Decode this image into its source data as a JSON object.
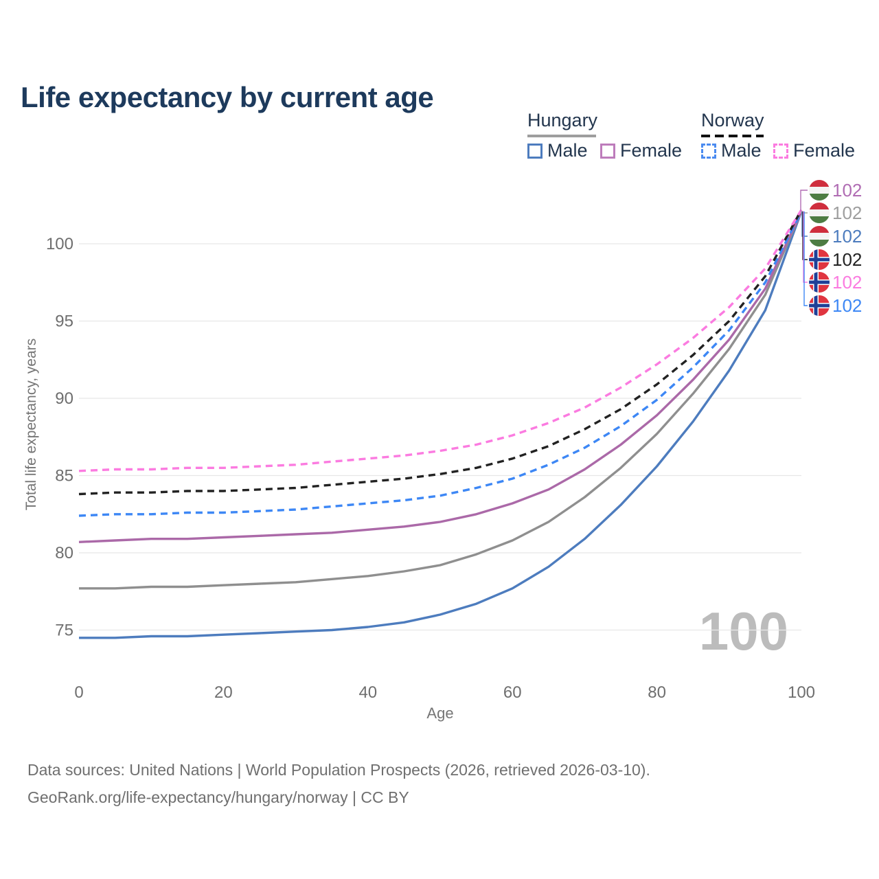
{
  "title": "Life expectancy by current age",
  "colors": {
    "title_text": "#1d3a5c",
    "legend_text": "#23364e",
    "axis_text": "#757575",
    "tick_text": "#6e6e6e",
    "gridline": "#e7e7e7",
    "watermark_text": "#bcbcbc",
    "hungary_male": "#4d7cbe",
    "hungary_female": "#b06fae",
    "hungary_both": "#8f8f8f",
    "norway_male": "#3d87f5",
    "norway_female": "#fb7be0",
    "norway_both": "#222222",
    "hungary_underline": "#9e9e9e",
    "norway_underline": "#111111"
  },
  "legend": {
    "groups": [
      {
        "label": "Hungary",
        "line_style": "solid",
        "underline_color": "#9e9e9e",
        "items": [
          {
            "label": "Male",
            "color": "#4d7cbe",
            "dash": false
          },
          {
            "label": "Female",
            "color": "#bd7cbb",
            "dash": false
          }
        ]
      },
      {
        "label": "Norway",
        "line_style": "dashed",
        "underline_color": "#111111",
        "items": [
          {
            "label": "Male",
            "color": "#4b8bf0",
            "dash": true
          },
          {
            "label": "Female",
            "color": "#fb7be0",
            "dash": true
          }
        ]
      }
    ]
  },
  "chart_data": {
    "type": "line",
    "title": "Life expectancy by current age",
    "xlabel": "Age",
    "ylabel": "Total life expectancy, years",
    "x_ticks": [
      0,
      20,
      40,
      60,
      80,
      100
    ],
    "y_ticks": [
      75,
      80,
      85,
      90,
      95,
      100
    ],
    "xlim": [
      0,
      100
    ],
    "ylim": [
      72.5,
      103
    ],
    "grid": "horizontal",
    "legend_position": "top-right",
    "x": [
      0,
      5,
      10,
      15,
      20,
      25,
      30,
      35,
      40,
      45,
      50,
      55,
      60,
      65,
      70,
      75,
      80,
      85,
      90,
      95,
      100
    ],
    "series": [
      {
        "name": "Hungary Male",
        "country": "Hungary",
        "sex": "Male",
        "color": "#4d7cbe",
        "dash": false,
        "end_label": "102",
        "values": [
          74.5,
          74.5,
          74.6,
          74.6,
          74.7,
          74.8,
          74.9,
          75.0,
          75.2,
          75.5,
          76.0,
          76.7,
          77.7,
          79.1,
          80.9,
          83.1,
          85.6,
          88.5,
          91.8,
          95.7,
          102.1
        ]
      },
      {
        "name": "Hungary Both sexes",
        "country": "Hungary",
        "sex": "Both",
        "color": "#8f8f8f",
        "dash": false,
        "end_label": "102",
        "values": [
          77.7,
          77.7,
          77.8,
          77.8,
          77.9,
          78.0,
          78.1,
          78.3,
          78.5,
          78.8,
          79.2,
          79.9,
          80.8,
          82.0,
          83.6,
          85.5,
          87.7,
          90.3,
          93.2,
          96.7,
          102.1
        ]
      },
      {
        "name": "Hungary Female",
        "country": "Hungary",
        "sex": "Female",
        "color": "#ab69a8",
        "dash": false,
        "end_label": "102",
        "values": [
          80.7,
          80.8,
          80.9,
          80.9,
          81.0,
          81.1,
          81.2,
          81.3,
          81.5,
          81.7,
          82.0,
          82.5,
          83.2,
          84.1,
          85.4,
          87.0,
          88.9,
          91.2,
          93.8,
          97.1,
          102.1
        ]
      },
      {
        "name": "Norway Male",
        "country": "Norway",
        "sex": "Male",
        "color": "#3d87f5",
        "dash": true,
        "end_label": "102",
        "values": [
          82.4,
          82.5,
          82.5,
          82.6,
          82.6,
          82.7,
          82.8,
          83.0,
          83.2,
          83.4,
          83.7,
          84.2,
          84.8,
          85.7,
          86.8,
          88.2,
          89.9,
          92.0,
          94.4,
          97.5,
          102.1
        ]
      },
      {
        "name": "Norway Both sexes",
        "country": "Norway",
        "sex": "Both",
        "color": "#222222",
        "dash": true,
        "end_label": "102",
        "values": [
          83.8,
          83.9,
          83.9,
          84.0,
          84.0,
          84.1,
          84.2,
          84.4,
          84.6,
          84.8,
          85.1,
          85.5,
          86.1,
          86.9,
          88.0,
          89.3,
          90.9,
          92.8,
          95.0,
          97.9,
          102.2
        ]
      },
      {
        "name": "Norway Female",
        "country": "Norway",
        "sex": "Female",
        "color": "#fb7be0",
        "dash": true,
        "end_label": "102",
        "values": [
          85.3,
          85.4,
          85.4,
          85.5,
          85.5,
          85.6,
          85.7,
          85.9,
          86.1,
          86.3,
          86.6,
          87.0,
          87.6,
          88.4,
          89.4,
          90.7,
          92.2,
          93.9,
          95.9,
          98.4,
          102.2
        ]
      }
    ]
  },
  "end_labels": {
    "rows": [
      {
        "flag": "hungary",
        "series": "Hungary Female",
        "value": "102",
        "color": "#b06cb3"
      },
      {
        "flag": "hungary",
        "series": "Hungary Both sexes",
        "value": "102",
        "color": "#9e9e9e"
      },
      {
        "flag": "hungary",
        "series": "Hungary Male",
        "value": "102",
        "color": "#4d7cbe"
      },
      {
        "flag": "norway",
        "series": "Norway Both sexes",
        "value": "102",
        "color": "#222222"
      },
      {
        "flag": "norway",
        "series": "Norway Female",
        "value": "102",
        "color": "#fb7be0"
      },
      {
        "flag": "norway",
        "series": "Norway Male",
        "value": "102",
        "color": "#3d87f5"
      }
    ]
  },
  "flag_colors": {
    "hungary": {
      "top": "#cf2e3d",
      "middle": "#f4f4f4",
      "bottom": "#4d7c43"
    },
    "norway": {
      "field": "#e03540",
      "cross_outer": "#ffffff",
      "cross_inner": "#1f4097"
    }
  },
  "watermark": "100",
  "footer": {
    "line1": "Data sources: United Nations | World Population Prospects (2026, retrieved 2026-03-10).",
    "line2": "GeoRank.org/life-expectancy/hungary/norway | CC BY"
  }
}
